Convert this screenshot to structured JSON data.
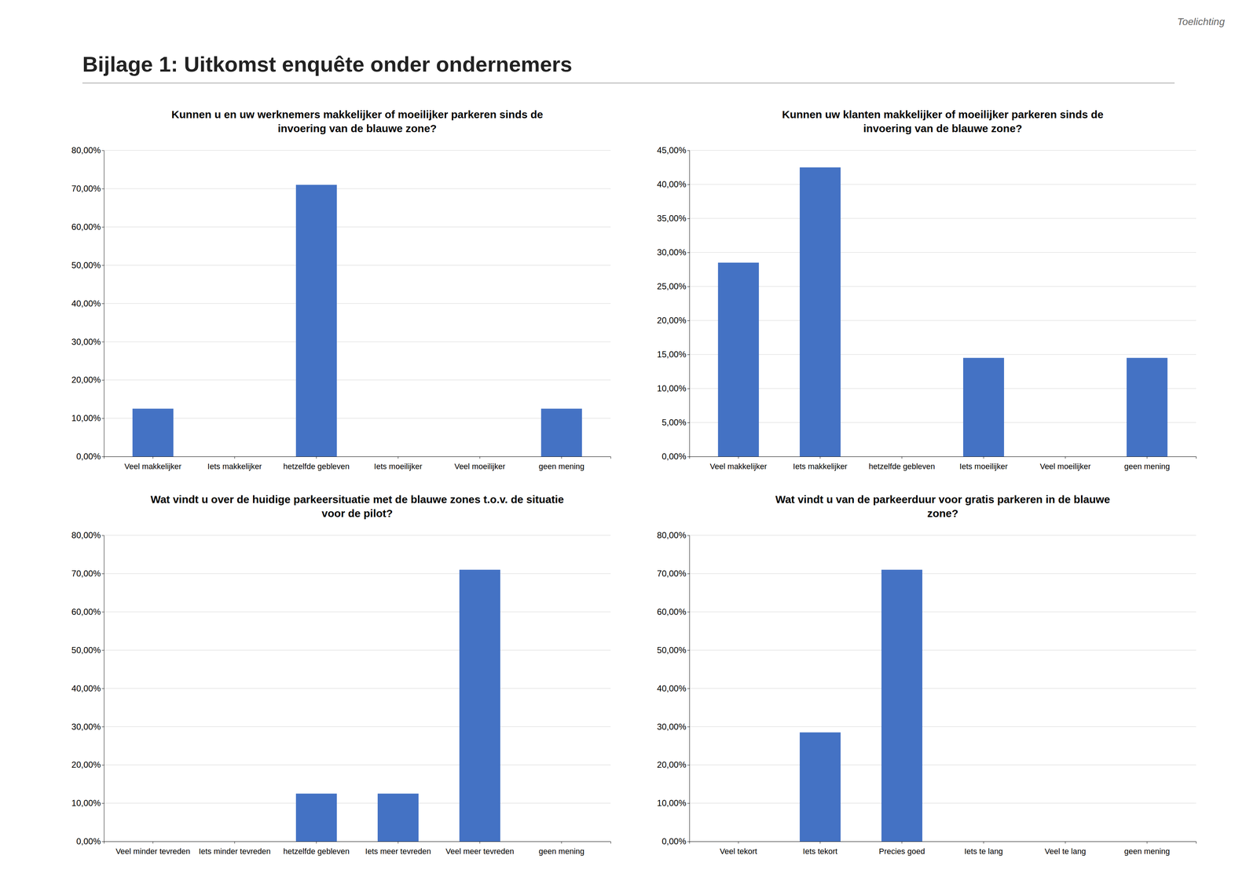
{
  "title": "Bijlage 1: Uitkomst enquête onder ondernemers",
  "annotations": [
    "Toelichting"
  ],
  "chart_data": [
    {
      "type": "bar",
      "title": "Kunnen u en uw werknemers makkelijker of moeilijker parkeren sinds de\ninvoering van de blauwe zone?",
      "categories": [
        "Veel makkelijker",
        "Iets makkelijker",
        "hetzelfde gebleven",
        "Iets moeilijker",
        "Veel moeilijker",
        "geen mening"
      ],
      "values": [
        12.5,
        0.0,
        71.0,
        0.0,
        0.0,
        12.5
      ],
      "color": "#4472C4",
      "ylim": [
        0,
        80
      ],
      "yticks": [
        {
          "value": 0,
          "label": "0,00%"
        },
        {
          "value": 10,
          "label": "10,00%"
        },
        {
          "value": 20,
          "label": "20,00%"
        },
        {
          "value": 30,
          "label": "30,00%"
        },
        {
          "value": 40,
          "label": "40,00%"
        },
        {
          "value": 50,
          "label": "50,00%"
        },
        {
          "value": 60,
          "label": "60,00%"
        },
        {
          "value": 70,
          "label": "70,00%"
        },
        {
          "value": 80,
          "label": "80,00%"
        }
      ],
      "grid": true
    },
    {
      "type": "bar",
      "title": "Kunnen uw klanten makkelijker of moeilijker parkeren sinds de\ninvoering van de blauwe zone?",
      "categories": [
        "Veel makkelijker",
        "Iets makkelijker",
        "hetzelfde gebleven",
        "Iets moeilijker",
        "Veel moeilijker",
        "geen mening"
      ],
      "values": [
        28.5,
        42.5,
        0.0,
        14.5,
        0.0,
        14.5
      ],
      "color": "#4472C4",
      "ylim": [
        0,
        45
      ],
      "yticks": [
        {
          "value": 0,
          "label": "0,00%"
        },
        {
          "value": 5,
          "label": "5,00%"
        },
        {
          "value": 10,
          "label": "10,00%"
        },
        {
          "value": 15,
          "label": "15,00%"
        },
        {
          "value": 20,
          "label": "20,00%"
        },
        {
          "value": 25,
          "label": "25,00%"
        },
        {
          "value": 30,
          "label": "30,00%"
        },
        {
          "value": 35,
          "label": "35,00%"
        },
        {
          "value": 40,
          "label": "40,00%"
        },
        {
          "value": 45,
          "label": "45,00%"
        }
      ],
      "grid": true
    },
    {
      "type": "bar",
      "title": "Wat vindt u over de huidige parkeersituatie met de blauwe zones t.o.v. de situatie\nvoor de pilot?",
      "categories": [
        "Veel minder tevreden",
        "Iets minder tevreden",
        "hetzelfde gebleven",
        "Iets meer tevreden",
        "Veel meer tevreden",
        "geen mening"
      ],
      "values": [
        0.0,
        0.0,
        12.5,
        12.5,
        71.0,
        0.0
      ],
      "color": "#4472C4",
      "ylim": [
        0,
        80
      ],
      "yticks": [
        {
          "value": 0,
          "label": "0,00%"
        },
        {
          "value": 10,
          "label": "10,00%"
        },
        {
          "value": 20,
          "label": "20,00%"
        },
        {
          "value": 30,
          "label": "30,00%"
        },
        {
          "value": 40,
          "label": "40,00%"
        },
        {
          "value": 50,
          "label": "50,00%"
        },
        {
          "value": 60,
          "label": "60,00%"
        },
        {
          "value": 70,
          "label": "70,00%"
        },
        {
          "value": 80,
          "label": "80,00%"
        }
      ],
      "grid": true
    },
    {
      "type": "bar",
      "title": "Wat vindt u van de parkeerduur voor gratis parkeren in de blauwe\nzone?",
      "categories": [
        "Veel tekort",
        "Iets tekort",
        "Precies goed",
        "Iets te lang",
        "Veel te lang",
        "geen mening"
      ],
      "values": [
        0.0,
        28.5,
        71.0,
        0.0,
        0.0,
        0.0
      ],
      "color": "#4472C4",
      "ylim": [
        0,
        80
      ],
      "yticks": [
        {
          "value": 0,
          "label": "0,00%"
        },
        {
          "value": 10,
          "label": "10,00%"
        },
        {
          "value": 20,
          "label": "20,00%"
        },
        {
          "value": 30,
          "label": "30,00%"
        },
        {
          "value": 40,
          "label": "40,00%"
        },
        {
          "value": 50,
          "label": "50,00%"
        },
        {
          "value": 60,
          "label": "60,00%"
        },
        {
          "value": 70,
          "label": "70,00%"
        },
        {
          "value": 80,
          "label": "80,00%"
        }
      ],
      "grid": true
    }
  ]
}
